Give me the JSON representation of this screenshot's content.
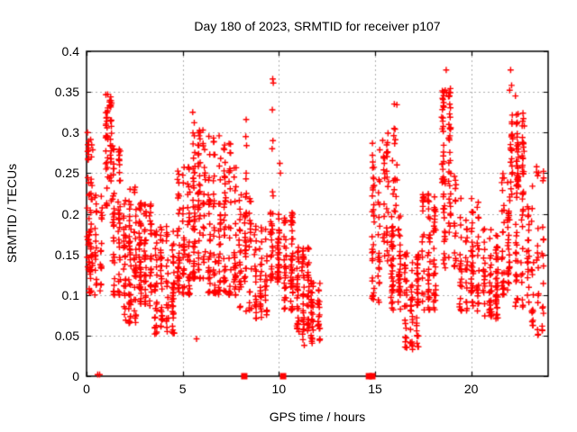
{
  "title": "Day 180 of 2023, SRMTID for receiver p107",
  "axes": {
    "xlabel": "GPS time / hours",
    "ylabel": "SRMTID / TECUs",
    "x_range": [
      0,
      24
    ],
    "y_range": [
      0,
      0.4
    ],
    "x_ticks": [
      {
        "value": 0,
        "label": "0"
      },
      {
        "value": 5,
        "label": "5"
      },
      {
        "value": 10,
        "label": "10"
      },
      {
        "value": 15,
        "label": "15"
      },
      {
        "value": 20,
        "label": "20"
      }
    ],
    "y_ticks": [
      {
        "value": 0,
        "label": "0"
      },
      {
        "value": 0.05,
        "label": "0.05"
      },
      {
        "value": 0.1,
        "label": "0.1"
      },
      {
        "value": 0.15,
        "label": "0.15"
      },
      {
        "value": 0.2,
        "label": "0.2"
      },
      {
        "value": 0.25,
        "label": "0.25"
      },
      {
        "value": 0.3,
        "label": "0.3"
      },
      {
        "value": 0.35,
        "label": "0.35"
      },
      {
        "value": 0.4,
        "label": "0.4"
      }
    ]
  },
  "colors": {
    "marker": "#ff0000",
    "grid": "#b0b0b0",
    "border": "#000000",
    "text": "#000000",
    "background": "#ffffff"
  },
  "chart_data": {
    "type": "scatter",
    "title": "Day 180 of 2023, SRMTID for receiver p107",
    "xlabel": "GPS time / hours",
    "ylabel": "SRMTID / TECUs",
    "xlim": [
      0,
      24
    ],
    "ylim": [
      0,
      0.4
    ],
    "grid": true,
    "legend": "none",
    "marker": "plus",
    "marker_size_px": 7,
    "color": "#ff0000",
    "data_gap_hours": [
      12.3,
      14.7
    ],
    "point_cloud_clusters": [
      {
        "x": [
          0.0,
          0.35
        ],
        "y": [
          0.13,
          0.305
        ],
        "n": 45,
        "b": 1.4
      },
      {
        "x": [
          0.05,
          0.9
        ],
        "y": [
          0.1,
          0.225
        ],
        "n": 55,
        "b": 1.2
      },
      {
        "x": [
          0.95,
          1.35
        ],
        "y": [
          0.19,
          0.347
        ],
        "n": 55,
        "b": 0.6
      },
      {
        "x": [
          1.25,
          1.85
        ],
        "y": [
          0.1,
          0.285
        ],
        "n": 65,
        "b": 1.3
      },
      {
        "x": [
          1.85,
          2.65
        ],
        "y": [
          0.065,
          0.235
        ],
        "n": 95,
        "b": 1.2
      },
      {
        "x": [
          2.65,
          3.45
        ],
        "y": [
          0.085,
          0.215
        ],
        "n": 95,
        "b": 1.1
      },
      {
        "x": [
          3.45,
          4.65
        ],
        "y": [
          0.05,
          0.185
        ],
        "n": 110,
        "b": 1.1
      },
      {
        "x": [
          4.65,
          5.45
        ],
        "y": [
          0.1,
          0.26
        ],
        "n": 90,
        "b": 1.4
      },
      {
        "x": [
          5.45,
          6.25
        ],
        "y": [
          0.12,
          0.305
        ],
        "n": 95,
        "b": 1.5
      },
      {
        "x": [
          6.25,
          7.05
        ],
        "y": [
          0.1,
          0.3
        ],
        "n": 85,
        "b": 1.6
      },
      {
        "x": [
          7.05,
          7.85
        ],
        "y": [
          0.1,
          0.29
        ],
        "n": 80,
        "b": 1.5
      },
      {
        "x": [
          7.85,
          8.65
        ],
        "y": [
          0.08,
          0.225
        ],
        "n": 65,
        "b": 1.3
      },
      {
        "x": [
          8.65,
          9.45
        ],
        "y": [
          0.07,
          0.185
        ],
        "n": 60,
        "b": 1.2
      },
      {
        "x": [
          9.45,
          10.15
        ],
        "y": [
          0.115,
          0.205
        ],
        "n": 60,
        "b": 1.1
      },
      {
        "x": [
          10.15,
          10.85
        ],
        "y": [
          0.08,
          0.205
        ],
        "n": 70,
        "b": 1.2
      },
      {
        "x": [
          10.85,
          11.65
        ],
        "y": [
          0.05,
          0.16
        ],
        "n": 85,
        "b": 1.1
      },
      {
        "x": [
          11.55,
          12.25
        ],
        "y": [
          0.04,
          0.125
        ],
        "n": 50,
        "b": 1.1
      },
      {
        "x": [
          14.75,
          15.35
        ],
        "y": [
          0.09,
          0.29
        ],
        "n": 55,
        "b": 1.4
      },
      {
        "x": [
          15.35,
          15.75
        ],
        "y": [
          0.14,
          0.3
        ],
        "n": 35,
        "b": 1.0
      },
      {
        "x": [
          15.9,
          16.15
        ],
        "y": [
          0.2,
          0.335
        ],
        "n": 18,
        "b": 0.9
      },
      {
        "x": [
          15.7,
          16.45
        ],
        "y": [
          0.08,
          0.2
        ],
        "n": 70,
        "b": 1.1
      },
      {
        "x": [
          16.45,
          17.35
        ],
        "y": [
          0.035,
          0.155
        ],
        "n": 85,
        "b": 1.1
      },
      {
        "x": [
          17.35,
          18.25
        ],
        "y": [
          0.08,
          0.225
        ],
        "n": 80,
        "b": 1.2
      },
      {
        "x": [
          18.35,
          19.05
        ],
        "y": [
          0.22,
          0.355
        ],
        "n": 55,
        "b": 0.75
      },
      {
        "x": [
          18.45,
          19.3
        ],
        "y": [
          0.13,
          0.25
        ],
        "n": 45,
        "b": 1.0
      },
      {
        "x": [
          19.3,
          20.5
        ],
        "y": [
          0.08,
          0.22
        ],
        "n": 90,
        "b": 1.2
      },
      {
        "x": [
          20.5,
          21.5
        ],
        "y": [
          0.07,
          0.185
        ],
        "n": 85,
        "b": 1.1
      },
      {
        "x": [
          21.5,
          22.1
        ],
        "y": [
          0.1,
          0.255
        ],
        "n": 55,
        "b": 1.2
      },
      {
        "x": [
          21.95,
          22.85
        ],
        "y": [
          0.22,
          0.325
        ],
        "n": 80,
        "b": 0.9
      },
      {
        "x": [
          22.2,
          23.1
        ],
        "y": [
          0.085,
          0.22
        ],
        "n": 55,
        "b": 1.1
      },
      {
        "x": [
          23.05,
          23.85
        ],
        "y": [
          0.05,
          0.26
        ],
        "n": 50,
        "b": 1.3
      }
    ],
    "feature_points": [
      [
        0.05,
        0.3
      ],
      [
        0.07,
        0.285
      ],
      [
        1.1,
        0.347
      ],
      [
        0.58,
        0.002
      ],
      [
        0.68,
        0.002
      ],
      [
        5.52,
        0.325
      ],
      [
        5.6,
        0.312
      ],
      [
        5.72,
        0.046
      ],
      [
        6.05,
        0.303
      ],
      [
        8.3,
        0.316
      ],
      [
        8.28,
        0.295
      ],
      [
        8.32,
        0.284
      ],
      [
        8.3,
        0.25
      ],
      [
        8.29,
        0.243
      ],
      [
        8.31,
        0.225
      ],
      [
        8.3,
        0.2
      ],
      [
        9.68,
        0.366
      ],
      [
        9.71,
        0.361
      ],
      [
        9.66,
        0.328
      ],
      [
        9.69,
        0.29
      ],
      [
        9.65,
        0.28
      ],
      [
        9.67,
        0.227
      ],
      [
        9.7,
        0.222
      ],
      [
        10.05,
        0.262
      ],
      [
        10.08,
        0.25
      ],
      [
        11.25,
        0.045
      ],
      [
        11.32,
        0.038
      ],
      [
        16.0,
        0.335
      ],
      [
        16.95,
        0.033
      ],
      [
        18.7,
        0.377
      ],
      [
        18.65,
        0.352
      ],
      [
        18.72,
        0.349
      ],
      [
        22.05,
        0.377
      ],
      [
        22.1,
        0.358
      ],
      [
        22.0,
        0.352
      ],
      [
        22.3,
        0.345
      ]
    ],
    "baseline_square_markers": [
      [
        8.2,
        0
      ],
      [
        10.22,
        0
      ],
      [
        14.68,
        0
      ],
      [
        14.86,
        0
      ]
    ]
  }
}
